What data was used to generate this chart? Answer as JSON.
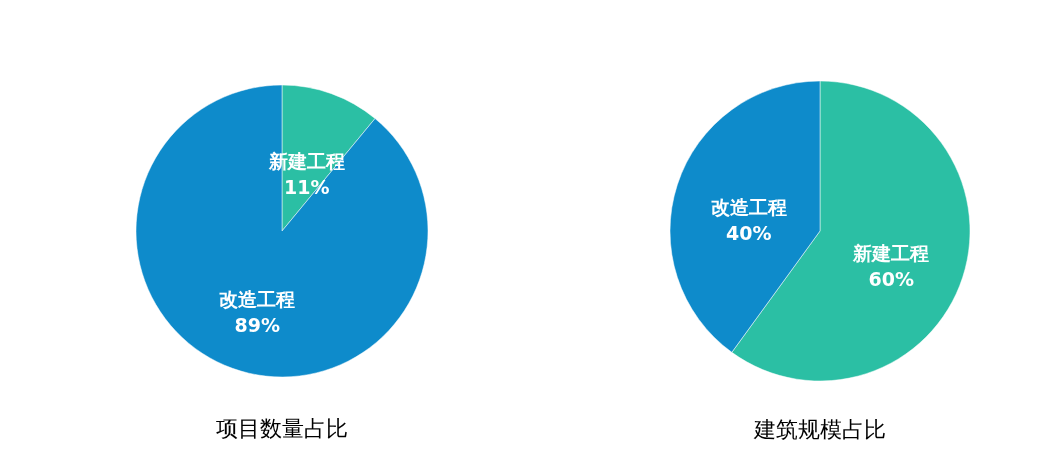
{
  "chart_data": [
    {
      "type": "pie",
      "title": "项目数量占比",
      "categories": [
        "新建工程",
        "改造工程"
      ],
      "values": [
        11,
        89
      ],
      "colors": [
        "#2bbfa4",
        "#0e8bcb"
      ],
      "value_labels": [
        "11%",
        "89%"
      ]
    },
    {
      "type": "pie",
      "title": "建筑规模占比",
      "categories": [
        "新建工程",
        "改造工程"
      ],
      "values": [
        60,
        40
      ],
      "colors": [
        "#2bbfa4",
        "#0e8bcb"
      ],
      "value_labels": [
        "60%",
        "40%"
      ]
    }
  ]
}
